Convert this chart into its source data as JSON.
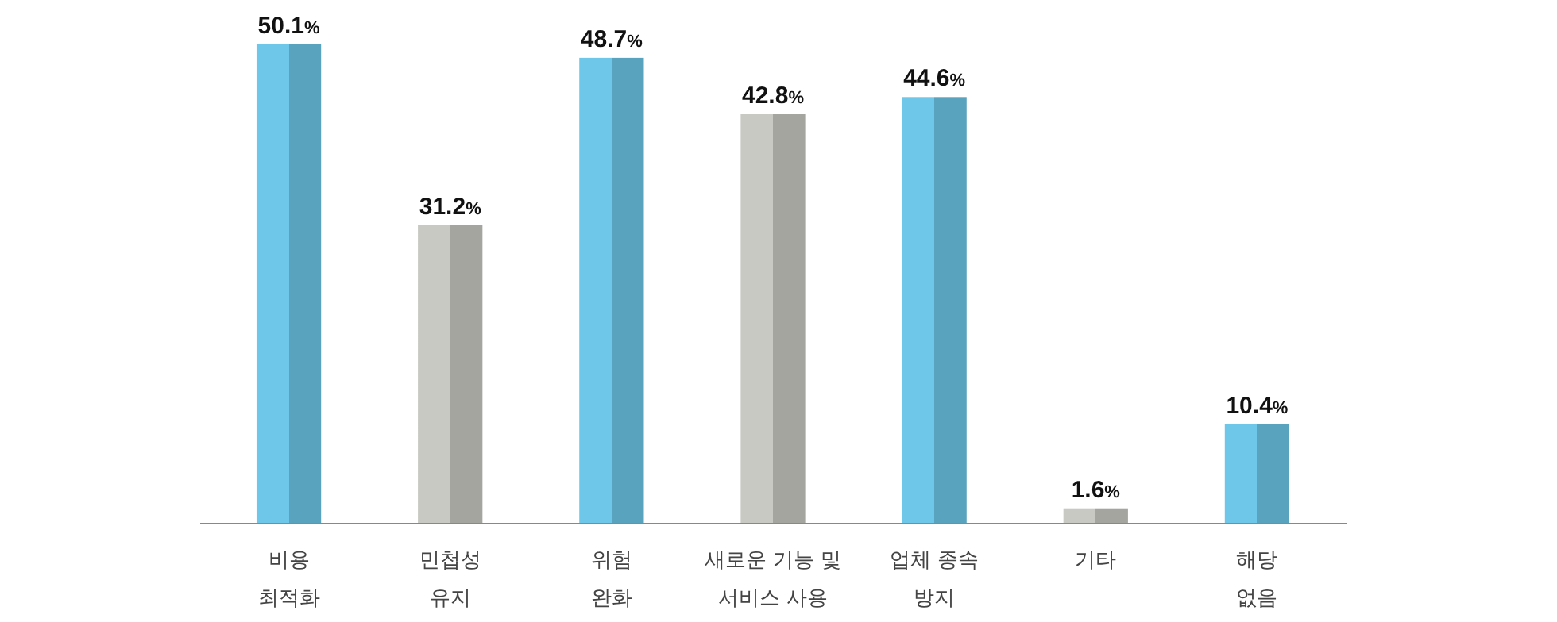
{
  "chart_data": {
    "type": "bar",
    "categories": [
      "비용\n최적화",
      "민첩성\n유지",
      "위험\n완화",
      "새로운 기능 및\n서비스 사용",
      "업체 종속\n방지",
      "기타",
      "해당\n없음"
    ],
    "values": [
      50.1,
      31.2,
      48.7,
      42.8,
      44.6,
      1.6,
      10.4
    ],
    "colors": [
      "#6ec6e8",
      "#c9c9c3",
      "#6ec6e8",
      "#c9c9c3",
      "#6ec6e8",
      "#c9c9c3",
      "#6ec6e8"
    ],
    "value_labels": [
      "50.1%",
      "31.2%",
      "48.7%",
      "42.8%",
      "44.6%",
      "1.6%",
      "10.4%"
    ]
  }
}
